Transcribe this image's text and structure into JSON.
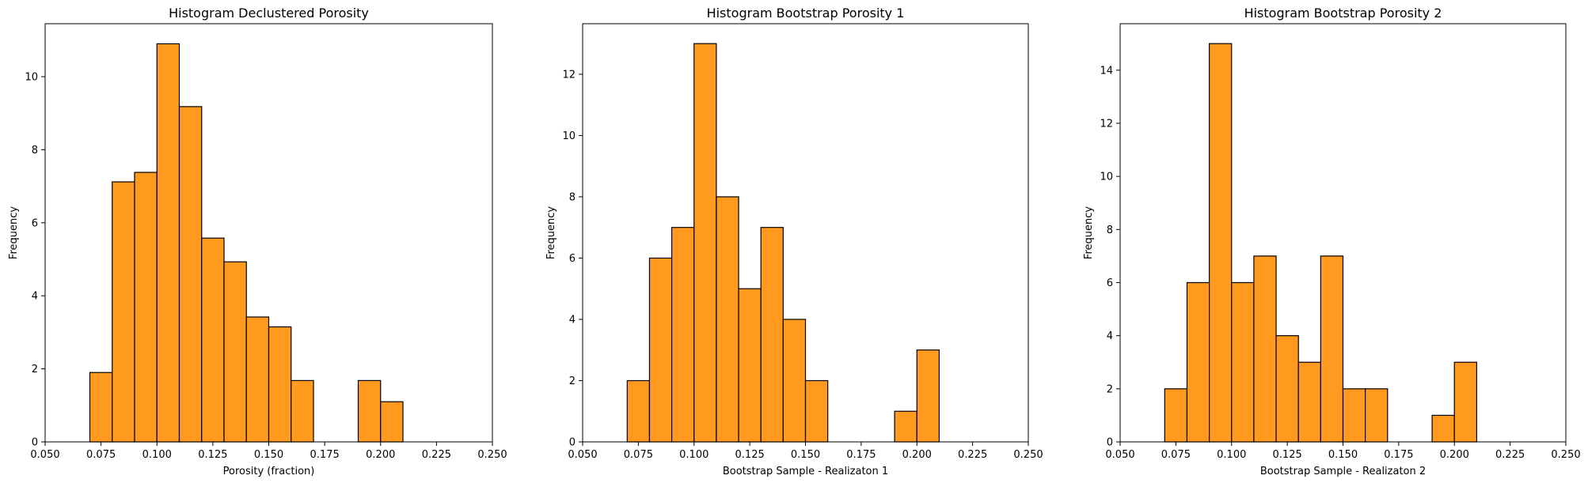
{
  "chart_data": [
    {
      "type": "bar",
      "title": "Histogram Declustered Porosity",
      "xlabel": "Porosity (fraction)",
      "ylabel": "Frequency",
      "xlim": [
        0.05,
        0.25
      ],
      "ylim": [
        0,
        11.45
      ],
      "xticks": [
        "0.050",
        "0.075",
        "0.100",
        "0.125",
        "0.150",
        "0.175",
        "0.200",
        "0.225",
        "0.250"
      ],
      "yticks": [
        0,
        2,
        4,
        6,
        8,
        10
      ],
      "bin_width": 0.01,
      "bins": [
        {
          "x": 0.07,
          "y": 1.9
        },
        {
          "x": 0.08,
          "y": 7.12
        },
        {
          "x": 0.09,
          "y": 7.38
        },
        {
          "x": 0.1,
          "y": 10.9
        },
        {
          "x": 0.11,
          "y": 9.18
        },
        {
          "x": 0.12,
          "y": 5.58
        },
        {
          "x": 0.13,
          "y": 4.93
        },
        {
          "x": 0.14,
          "y": 3.42
        },
        {
          "x": 0.15,
          "y": 3.15
        },
        {
          "x": 0.16,
          "y": 1.68
        },
        {
          "x": 0.19,
          "y": 1.68
        },
        {
          "x": 0.2,
          "y": 1.1
        }
      ],
      "bar_color": "#ff9a1f",
      "edge_color": "#000000"
    },
    {
      "type": "bar",
      "title": "Histogram Bootstrap Porosity 1",
      "xlabel": "Bootstrap Sample - Realizaton 1",
      "ylabel": "Frequency",
      "xlim": [
        0.05,
        0.25
      ],
      "ylim": [
        0,
        13.65
      ],
      "xticks": [
        "0.050",
        "0.075",
        "0.100",
        "0.125",
        "0.150",
        "0.175",
        "0.200",
        "0.225",
        "0.250"
      ],
      "yticks": [
        0,
        2,
        4,
        6,
        8,
        10,
        12
      ],
      "bin_width": 0.01,
      "bins": [
        {
          "x": 0.07,
          "y": 2
        },
        {
          "x": 0.08,
          "y": 6
        },
        {
          "x": 0.09,
          "y": 7
        },
        {
          "x": 0.1,
          "y": 13
        },
        {
          "x": 0.11,
          "y": 8
        },
        {
          "x": 0.12,
          "y": 5
        },
        {
          "x": 0.13,
          "y": 7
        },
        {
          "x": 0.14,
          "y": 4
        },
        {
          "x": 0.15,
          "y": 2
        },
        {
          "x": 0.19,
          "y": 1
        },
        {
          "x": 0.2,
          "y": 3
        }
      ],
      "bar_color": "#ff9a1f",
      "edge_color": "#000000"
    },
    {
      "type": "bar",
      "title": "Histogram Bootstrap Porosity 2",
      "xlabel": "Bootstrap Sample - Realizaton 2",
      "ylabel": "Frequency",
      "xlim": [
        0.05,
        0.25
      ],
      "ylim": [
        0,
        15.75
      ],
      "xticks": [
        "0.050",
        "0.075",
        "0.100",
        "0.125",
        "0.150",
        "0.175",
        "0.200",
        "0.225",
        "0.250"
      ],
      "yticks": [
        0,
        2,
        4,
        6,
        8,
        10,
        12,
        14
      ],
      "bin_width": 0.01,
      "bins": [
        {
          "x": 0.07,
          "y": 2
        },
        {
          "x": 0.08,
          "y": 6
        },
        {
          "x": 0.09,
          "y": 15
        },
        {
          "x": 0.1,
          "y": 6
        },
        {
          "x": 0.11,
          "y": 7
        },
        {
          "x": 0.12,
          "y": 4
        },
        {
          "x": 0.13,
          "y": 3
        },
        {
          "x": 0.14,
          "y": 7
        },
        {
          "x": 0.15,
          "y": 2
        },
        {
          "x": 0.16,
          "y": 2
        },
        {
          "x": 0.19,
          "y": 1
        },
        {
          "x": 0.2,
          "y": 3
        }
      ],
      "bar_color": "#ff9a1f",
      "edge_color": "#000000"
    }
  ]
}
